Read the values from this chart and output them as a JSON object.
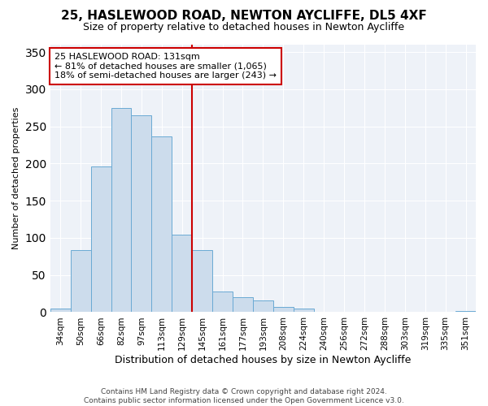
{
  "title": "25, HASLEWOOD ROAD, NEWTON AYCLIFFE, DL5 4XF",
  "subtitle": "Size of property relative to detached houses in Newton Aycliffe",
  "xlabel": "Distribution of detached houses by size in Newton Aycliffe",
  "ylabel": "Number of detached properties",
  "bin_labels": [
    "34sqm",
    "50sqm",
    "66sqm",
    "82sqm",
    "97sqm",
    "113sqm",
    "129sqm",
    "145sqm",
    "161sqm",
    "177sqm",
    "193sqm",
    "208sqm",
    "224sqm",
    "240sqm",
    "256sqm",
    "272sqm",
    "288sqm",
    "303sqm",
    "319sqm",
    "335sqm",
    "351sqm"
  ],
  "bar_values": [
    5,
    84,
    196,
    275,
    265,
    237,
    104,
    84,
    28,
    20,
    16,
    7,
    5,
    0,
    0,
    0,
    0,
    0,
    0,
    0,
    2
  ],
  "bar_color": "#ccdcec",
  "bar_edge_color": "#6aaad4",
  "annotation_text": "25 HASLEWOOD ROAD: 131sqm\n← 81% of detached houses are smaller (1,065)\n18% of semi-detached houses are larger (243) →",
  "annotation_box_color": "#ffffff",
  "annotation_box_edge_color": "#cc0000",
  "property_line_color": "#cc0000",
  "ylim": [
    0,
    360
  ],
  "yticks": [
    0,
    50,
    100,
    150,
    200,
    250,
    300,
    350
  ],
  "footer_line1": "Contains HM Land Registry data © Crown copyright and database right 2024.",
  "footer_line2": "Contains public sector information licensed under the Open Government Licence v3.0.",
  "bg_color": "#eef2f8",
  "grid_color": "#ffffff",
  "title_fontsize": 11,
  "subtitle_fontsize": 9,
  "ylabel_fontsize": 8,
  "xlabel_fontsize": 9,
  "tick_fontsize": 7.5,
  "annotation_fontsize": 8,
  "footer_fontsize": 6.5
}
